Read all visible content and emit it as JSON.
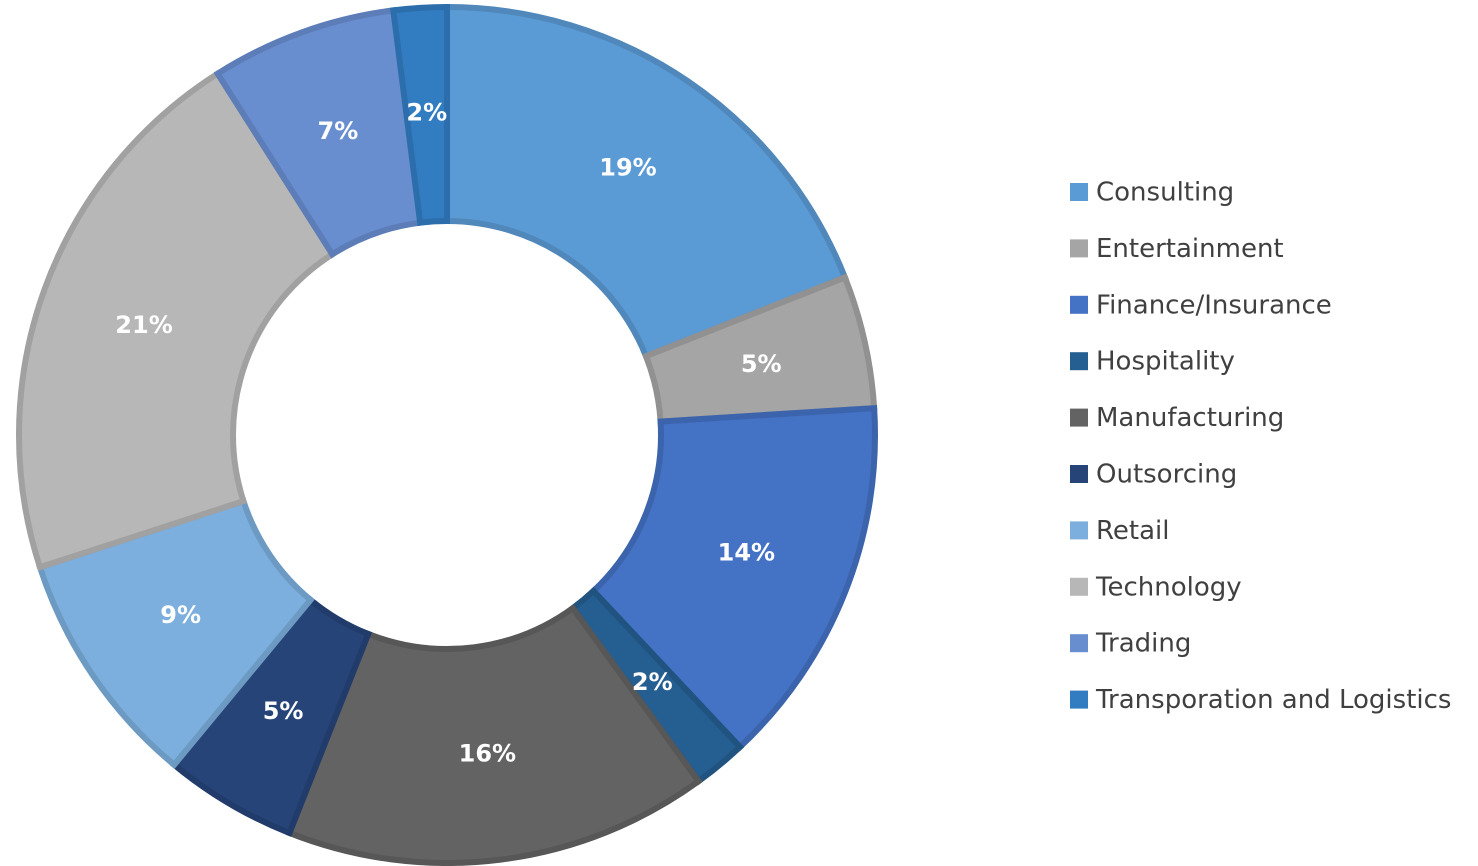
{
  "chart_data": {
    "type": "pie",
    "categories": [
      "Consulting",
      "Entertainment",
      "Finance/Insurance",
      "Hospitality",
      "Manufacturing",
      "Outsorcing",
      "Retail",
      "Technology",
      "Trading",
      "Transporation and Logistics"
    ],
    "values": [
      19,
      5,
      14,
      2,
      16,
      5,
      9,
      21,
      7,
      2
    ],
    "value_labels": [
      "19%",
      "5%",
      "14%",
      "2%",
      "16%",
      "5%",
      "9%",
      "21%",
      "7%",
      "2%"
    ],
    "colors": [
      "#5b9bd5",
      "#a5a5a5",
      "#4472c4",
      "#255e91",
      "#636363",
      "#264478",
      "#7cafdd",
      "#b7b7b7",
      "#698ed0",
      "#327dc2"
    ],
    "legend": "right"
  }
}
